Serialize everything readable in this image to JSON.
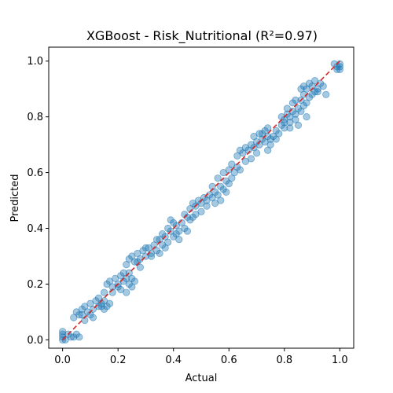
{
  "chart_data": {
    "type": "scatter",
    "title": "XGBoost - Risk_Nutritional (R²=0.97)",
    "xlabel": "Actual",
    "ylabel": "Predicted",
    "xlim": [
      -0.05,
      1.05
    ],
    "ylim": [
      -0.03,
      1.05
    ],
    "xticks": [
      0.0,
      0.2,
      0.4,
      0.6,
      0.8,
      1.0
    ],
    "yticks": [
      0.0,
      0.2,
      0.4,
      0.6,
      0.8,
      1.0
    ],
    "xtick_labels": [
      "0.0",
      "0.2",
      "0.4",
      "0.6",
      "0.8",
      "1.0"
    ],
    "ytick_labels": [
      "0.0",
      "0.2",
      "0.4",
      "0.6",
      "0.8",
      "1.0"
    ],
    "grid": false,
    "point_color": "#1f77b4",
    "point_alpha": 0.4,
    "reference_line": {
      "x": [
        0,
        1
      ],
      "y": [
        0,
        1
      ],
      "color": "#d62728",
      "style": "dashed"
    },
    "series": [
      {
        "points": [
          [
            0.0,
            0.01
          ],
          [
            0.0,
            0.03
          ],
          [
            0.0,
            0.02
          ],
          [
            0.01,
            0.0
          ],
          [
            0.0,
            0.0
          ],
          [
            0.02,
            0.02
          ],
          [
            0.03,
            0.01
          ],
          [
            0.04,
            0.01
          ],
          [
            0.05,
            0.02
          ],
          [
            0.06,
            0.01
          ],
          [
            0.04,
            0.08
          ],
          [
            0.05,
            0.1
          ],
          [
            0.06,
            0.09
          ],
          [
            0.07,
            0.11
          ],
          [
            0.08,
            0.12
          ],
          [
            0.09,
            0.1
          ],
          [
            0.1,
            0.13
          ],
          [
            0.11,
            0.11
          ],
          [
            0.12,
            0.14
          ],
          [
            0.13,
            0.12
          ],
          [
            0.14,
            0.13
          ],
          [
            0.15,
            0.11
          ],
          [
            0.13,
            0.15
          ],
          [
            0.11,
            0.08
          ],
          [
            0.08,
            0.07
          ],
          [
            0.07,
            0.09
          ],
          [
            0.1,
            0.09
          ],
          [
            0.14,
            0.12
          ],
          [
            0.15,
            0.14
          ],
          [
            0.16,
            0.12
          ],
          [
            0.17,
            0.13
          ],
          [
            0.15,
            0.17
          ],
          [
            0.16,
            0.2
          ],
          [
            0.17,
            0.21
          ],
          [
            0.18,
            0.19
          ],
          [
            0.19,
            0.22
          ],
          [
            0.2,
            0.2
          ],
          [
            0.21,
            0.23
          ],
          [
            0.22,
            0.21
          ],
          [
            0.23,
            0.22
          ],
          [
            0.24,
            0.2
          ],
          [
            0.25,
            0.22
          ],
          [
            0.26,
            0.21
          ],
          [
            0.23,
            0.17
          ],
          [
            0.21,
            0.18
          ],
          [
            0.22,
            0.24
          ],
          [
            0.2,
            0.19
          ],
          [
            0.18,
            0.17
          ],
          [
            0.24,
            0.24
          ],
          [
            0.25,
            0.19
          ],
          [
            0.23,
            0.27
          ],
          [
            0.24,
            0.29
          ],
          [
            0.25,
            0.3
          ],
          [
            0.26,
            0.28
          ],
          [
            0.27,
            0.31
          ],
          [
            0.28,
            0.29
          ],
          [
            0.29,
            0.32
          ],
          [
            0.3,
            0.3
          ],
          [
            0.31,
            0.33
          ],
          [
            0.32,
            0.31
          ],
          [
            0.33,
            0.34
          ],
          [
            0.34,
            0.32
          ],
          [
            0.35,
            0.36
          ],
          [
            0.36,
            0.34
          ],
          [
            0.37,
            0.37
          ],
          [
            0.38,
            0.35
          ],
          [
            0.39,
            0.39
          ],
          [
            0.4,
            0.37
          ],
          [
            0.41,
            0.41
          ],
          [
            0.42,
            0.39
          ],
          [
            0.43,
            0.42
          ],
          [
            0.44,
            0.4
          ],
          [
            0.45,
            0.44
          ],
          [
            0.4,
            0.42
          ],
          [
            0.41,
            0.38
          ],
          [
            0.38,
            0.4
          ],
          [
            0.36,
            0.38
          ],
          [
            0.34,
            0.36
          ],
          [
            0.32,
            0.3
          ],
          [
            0.3,
            0.33
          ],
          [
            0.28,
            0.26
          ],
          [
            0.27,
            0.28
          ],
          [
            0.35,
            0.31
          ],
          [
            0.37,
            0.33
          ],
          [
            0.39,
            0.43
          ],
          [
            0.42,
            0.36
          ],
          [
            0.44,
            0.45
          ],
          [
            0.45,
            0.39
          ],
          [
            0.46,
            0.43
          ],
          [
            0.47,
            0.44
          ],
          [
            0.46,
            0.47
          ],
          [
            0.47,
            0.49
          ],
          [
            0.48,
            0.48
          ],
          [
            0.49,
            0.5
          ],
          [
            0.5,
            0.49
          ],
          [
            0.51,
            0.51
          ],
          [
            0.52,
            0.5
          ],
          [
            0.53,
            0.52
          ],
          [
            0.54,
            0.51
          ],
          [
            0.55,
            0.53
          ],
          [
            0.56,
            0.52
          ],
          [
            0.57,
            0.55
          ],
          [
            0.58,
            0.54
          ],
          [
            0.59,
            0.57
          ],
          [
            0.6,
            0.56
          ],
          [
            0.48,
            0.45
          ],
          [
            0.5,
            0.46
          ],
          [
            0.52,
            0.48
          ],
          [
            0.54,
            0.55
          ],
          [
            0.56,
            0.58
          ],
          [
            0.58,
            0.6
          ],
          [
            0.6,
            0.61
          ],
          [
            0.57,
            0.5
          ],
          [
            0.55,
            0.49
          ],
          [
            0.61,
            0.58
          ],
          [
            0.62,
            0.6
          ],
          [
            0.63,
            0.62
          ],
          [
            0.64,
            0.61
          ],
          [
            0.61,
            0.63
          ],
          [
            0.59,
            0.53
          ],
          [
            0.63,
            0.66
          ],
          [
            0.64,
            0.68
          ],
          [
            0.65,
            0.67
          ],
          [
            0.66,
            0.69
          ],
          [
            0.67,
            0.68
          ],
          [
            0.68,
            0.7
          ],
          [
            0.69,
            0.69
          ],
          [
            0.7,
            0.71
          ],
          [
            0.71,
            0.7
          ],
          [
            0.72,
            0.72
          ],
          [
            0.73,
            0.71
          ],
          [
            0.74,
            0.73
          ],
          [
            0.75,
            0.72
          ],
          [
            0.66,
            0.64
          ],
          [
            0.68,
            0.65
          ],
          [
            0.7,
            0.67
          ],
          [
            0.72,
            0.74
          ],
          [
            0.74,
            0.76
          ],
          [
            0.75,
            0.7
          ],
          [
            0.77,
            0.72
          ],
          [
            0.76,
            0.73
          ],
          [
            0.71,
            0.74
          ],
          [
            0.69,
            0.73
          ],
          [
            0.74,
            0.68
          ],
          [
            0.73,
            0.75
          ],
          [
            0.77,
            0.75
          ],
          [
            0.79,
            0.77
          ],
          [
            0.78,
            0.74
          ],
          [
            0.8,
            0.78
          ],
          [
            0.82,
            0.76
          ],
          [
            0.79,
            0.8
          ],
          [
            0.8,
            0.79
          ],
          [
            0.81,
            0.81
          ],
          [
            0.82,
            0.8
          ],
          [
            0.83,
            0.82
          ],
          [
            0.84,
            0.81
          ],
          [
            0.85,
            0.83
          ],
          [
            0.86,
            0.82
          ],
          [
            0.87,
            0.84
          ],
          [
            0.8,
            0.76
          ],
          [
            0.82,
            0.78
          ],
          [
            0.84,
            0.79
          ],
          [
            0.86,
            0.86
          ],
          [
            0.84,
            0.86
          ],
          [
            0.88,
            0.8
          ],
          [
            0.85,
            0.77
          ],
          [
            0.83,
            0.85
          ],
          [
            0.81,
            0.83
          ],
          [
            0.87,
            0.88
          ],
          [
            0.86,
            0.9
          ],
          [
            0.87,
            0.91
          ],
          [
            0.88,
            0.9
          ],
          [
            0.89,
            0.92
          ],
          [
            0.9,
            0.91
          ],
          [
            0.91,
            0.93
          ],
          [
            0.92,
            0.9
          ],
          [
            0.93,
            0.92
          ],
          [
            0.94,
            0.91
          ],
          [
            0.9,
            0.88
          ],
          [
            0.92,
            0.89
          ],
          [
            0.88,
            0.85
          ],
          [
            0.89,
            0.87
          ],
          [
            0.91,
            0.89
          ],
          [
            0.95,
            0.88
          ],
          [
            0.99,
            0.98
          ],
          [
            1.0,
            0.99
          ],
          [
            0.99,
            0.97
          ],
          [
            1.0,
            0.98
          ],
          [
            0.98,
            0.99
          ],
          [
            1.0,
            0.97
          ]
        ]
      }
    ]
  }
}
